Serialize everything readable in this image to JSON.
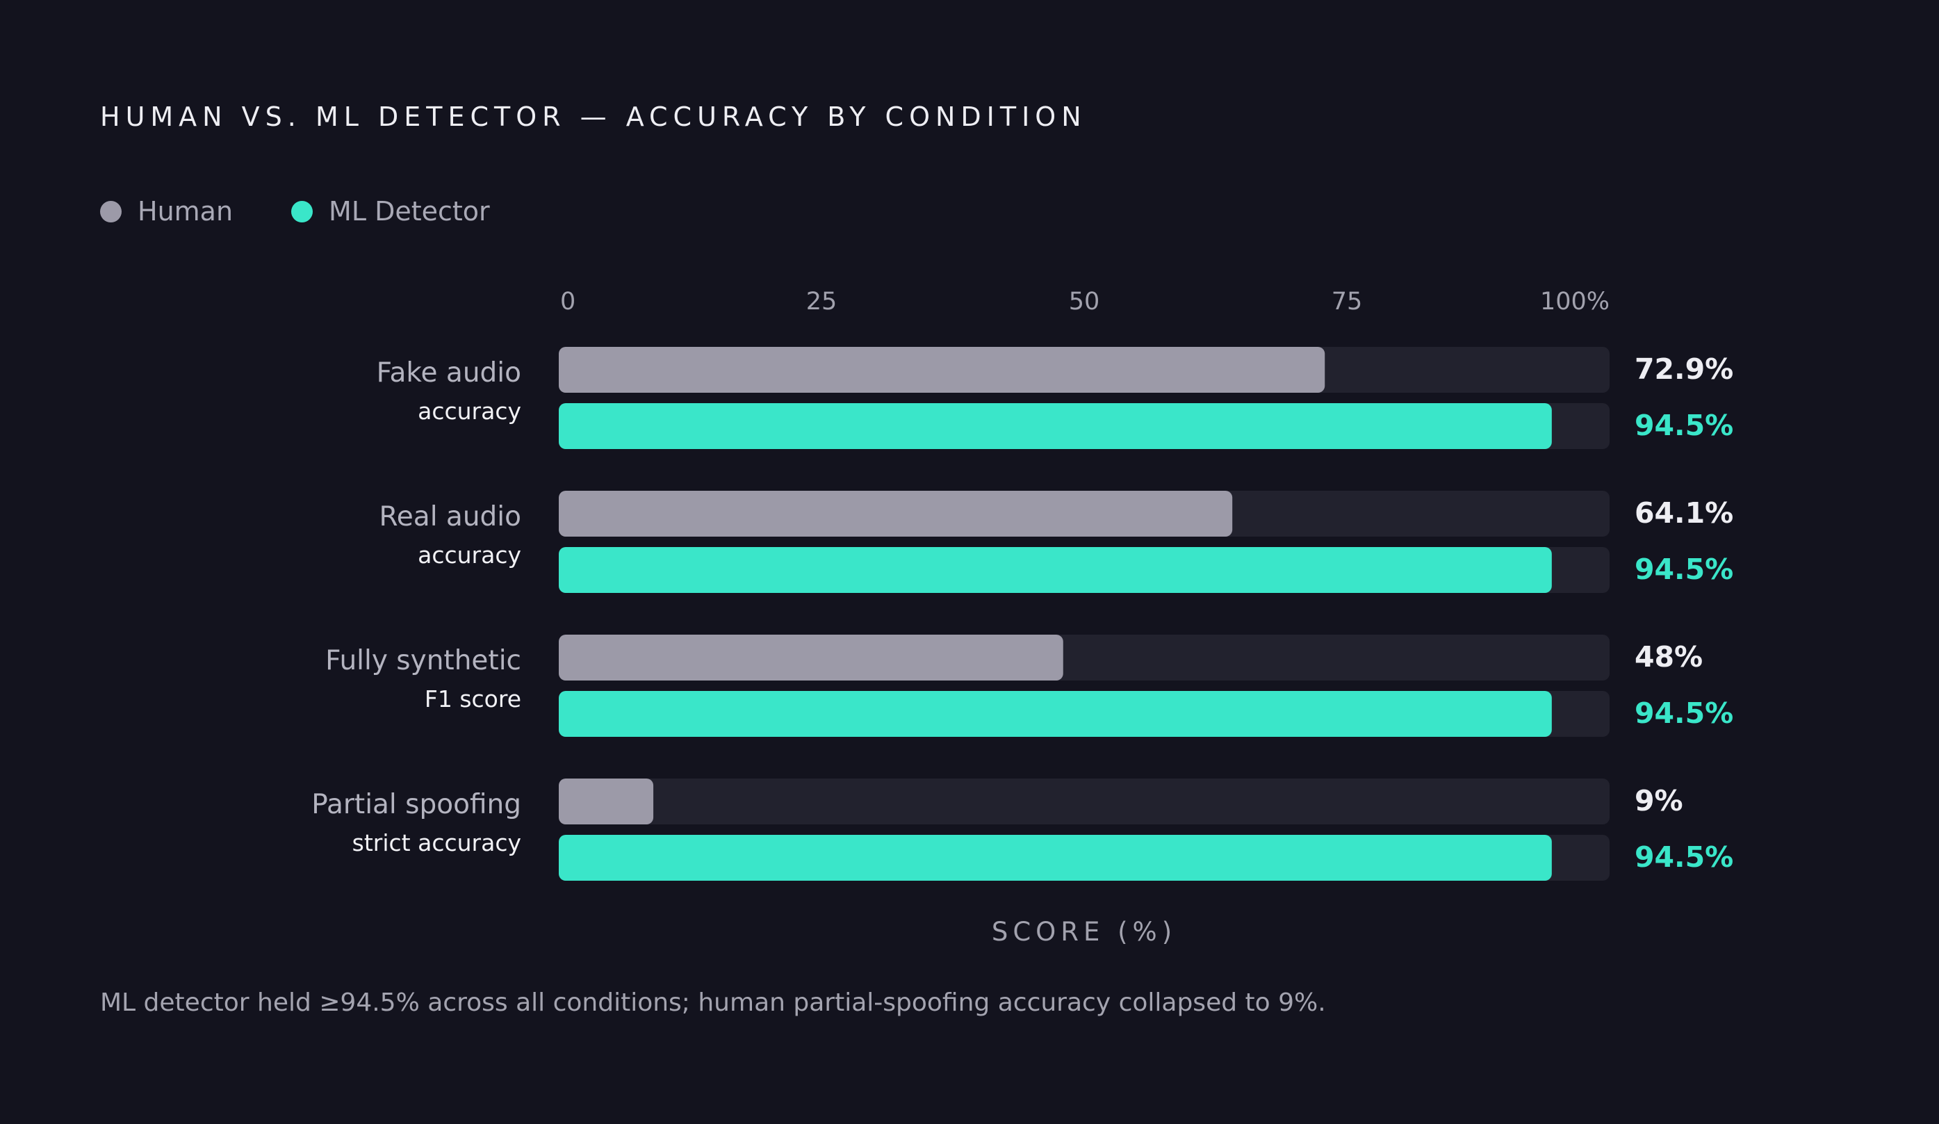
{
  "colors": {
    "background": "#13131e",
    "track": "#22222e",
    "human": "#9c9aa8",
    "ml": "#3ae6c9",
    "human_value_text": "#eeeef3",
    "ml_value_text": "#3ae6c9",
    "tick_text": "#a2a2ae",
    "category_main": "#b4b4c0",
    "category_sub": "#f2f2f6"
  },
  "legend": {
    "items": [
      {
        "label": "Human",
        "color": "#9c9aa8"
      },
      {
        "label": "ML Detector",
        "color": "#3ae6c9"
      }
    ]
  },
  "footnote": "ML detector held ≥94.5% across all conditions; human partial-spoofing accuracy collapsed to 9%.",
  "chart_data": {
    "type": "bar",
    "orientation": "horizontal",
    "title": "HUMAN VS. ML DETECTOR — ACCURACY BY CONDITION",
    "xlabel": "SCORE (%)",
    "xlim": [
      0,
      100
    ],
    "ticks": [
      {
        "value": 0,
        "label": "0"
      },
      {
        "value": 25,
        "label": "25"
      },
      {
        "value": 50,
        "label": "50"
      },
      {
        "value": 75,
        "label": "75"
      },
      {
        "value": 100,
        "label": "100%"
      }
    ],
    "categories": [
      {
        "main": "Fake audio",
        "sub": "accuracy"
      },
      {
        "main": "Real audio",
        "sub": "accuracy"
      },
      {
        "main": "Fully synthetic",
        "sub": "F1 score"
      },
      {
        "main": "Partial spoofing",
        "sub": "strict accuracy"
      }
    ],
    "series": [
      {
        "name": "Human",
        "values": [
          72.9,
          64.1,
          48,
          9
        ],
        "value_labels": [
          "72.9%",
          "64.1%",
          "48%",
          "9%"
        ]
      },
      {
        "name": "ML Detector",
        "values": [
          94.5,
          94.5,
          94.5,
          94.5
        ],
        "value_labels": [
          "94.5%",
          "94.5%",
          "94.5%",
          "94.5%"
        ]
      }
    ],
    "legend_position": "top-left",
    "grid": false
  }
}
